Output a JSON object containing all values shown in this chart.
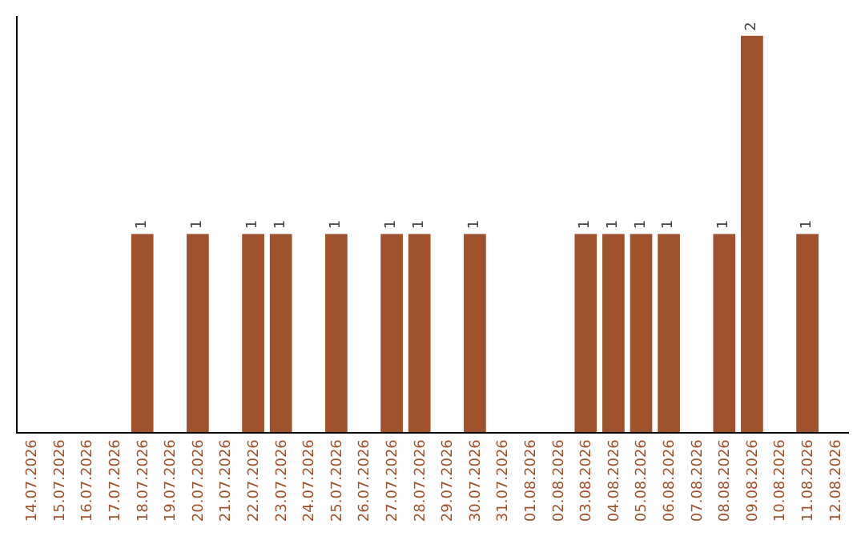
{
  "chart_data": {
    "type": "bar",
    "categories": [
      "14.07.2026",
      "15.07.2026",
      "16.07.2026",
      "17.07.2026",
      "18.07.2026",
      "19.07.2026",
      "20.07.2026",
      "21.07.2026",
      "22.07.2026",
      "23.07.2026",
      "24.07.2026",
      "25.07.2026",
      "26.07.2026",
      "27.07.2026",
      "28.07.2026",
      "29.07.2026",
      "30.07.2026",
      "31.07.2026",
      "01.08.2026",
      "02.08.2026",
      "03.08.2026",
      "04.08.2026",
      "05.08.2026",
      "06.08.2026",
      "07.08.2026",
      "08.08.2026",
      "09.08.2026",
      "10.08.2026",
      "11.08.2026",
      "12.08.2026"
    ],
    "values": [
      null,
      null,
      null,
      null,
      1,
      null,
      1,
      null,
      1,
      1,
      null,
      1,
      null,
      1,
      1,
      null,
      1,
      null,
      null,
      null,
      1,
      1,
      1,
      1,
      null,
      1,
      2,
      null,
      1,
      null
    ],
    "color": "#a0522d",
    "ylim": [
      0,
      2.1
    ],
    "data_labels": true,
    "grid": false,
    "legend": false,
    "tick_labels": "x"
  }
}
